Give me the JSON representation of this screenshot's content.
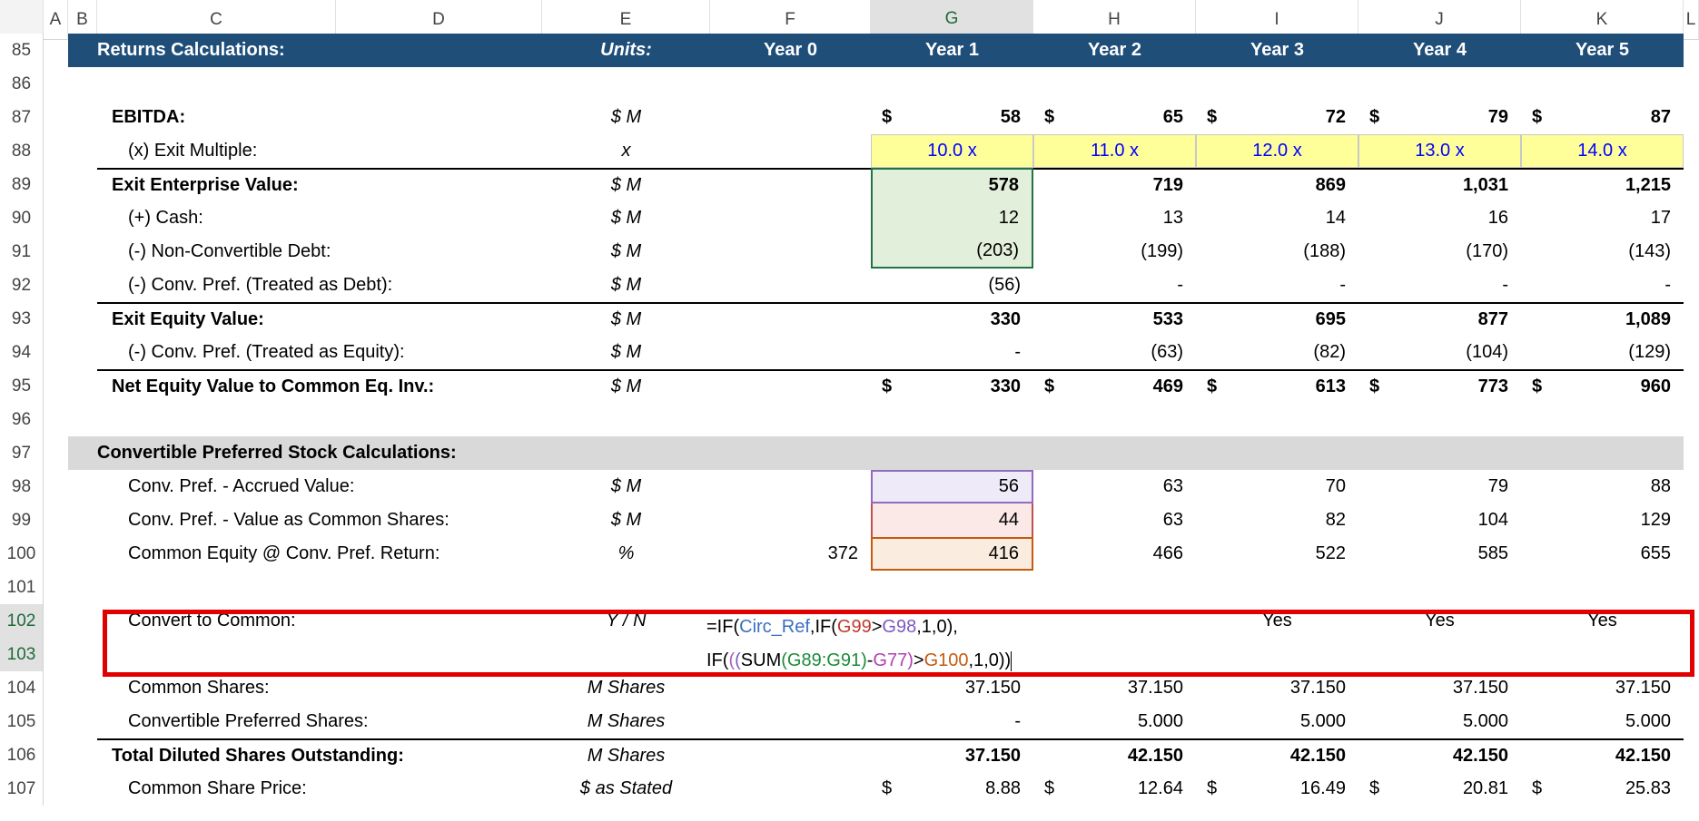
{
  "columns": [
    "A",
    "B",
    "C",
    "D",
    "E",
    "F",
    "G",
    "H",
    "I",
    "J",
    "K",
    "L"
  ],
  "selected_column": "G",
  "header_row": {
    "row": 85,
    "label": "Returns Calculations:",
    "units": "Units:",
    "years": [
      "Year 0",
      "Year 1",
      "Year 2",
      "Year 3",
      "Year 4",
      "Year 5"
    ]
  },
  "rows": [
    {
      "row": 86
    },
    {
      "row": 87,
      "label": "EBITDA:",
      "bold": true,
      "unit": "$ M",
      "dollar": true,
      "values": [
        "",
        "58",
        "65",
        "72",
        "79",
        "87"
      ]
    },
    {
      "row": 88,
      "label": "(x) Exit Multiple:",
      "unit": "x",
      "style": "multiple",
      "values": [
        "",
        "10.0 x",
        "11.0 x",
        "12.0 x",
        "13.0 x",
        "14.0 x"
      ]
    },
    {
      "row": 89,
      "label": "Exit Enterprise Value:",
      "bold": true,
      "unit": "$ M",
      "topline": true,
      "values": [
        "",
        "578",
        "719",
        "869",
        "1,031",
        "1,215"
      ]
    },
    {
      "row": 90,
      "label": "(+) Cash:",
      "unit": "$ M",
      "values": [
        "",
        "12",
        "13",
        "14",
        "16",
        "17"
      ]
    },
    {
      "row": 91,
      "label": "(-) Non-Convertible Debt:",
      "unit": "$ M",
      "values": [
        "",
        "(203)",
        "(199)",
        "(188)",
        "(170)",
        "(143)"
      ]
    },
    {
      "row": 92,
      "label": "(-) Conv. Pref. (Treated as Debt):",
      "unit": "$ M",
      "values": [
        "",
        "(56)",
        "-",
        "-",
        "-",
        "-"
      ]
    },
    {
      "row": 93,
      "label": "Exit Equity Value:",
      "bold": true,
      "unit": "$ M",
      "topline": true,
      "values": [
        "",
        "330",
        "533",
        "695",
        "877",
        "1,089"
      ]
    },
    {
      "row": 94,
      "label": "(-) Conv. Pref. (Treated as Equity):",
      "unit": "$ M",
      "values": [
        "",
        "-",
        "(63)",
        "(82)",
        "(104)",
        "(129)"
      ]
    },
    {
      "row": 95,
      "label": "Net Equity Value to Common Eq. Inv.:",
      "bold": true,
      "unit": "$ M",
      "topline": true,
      "dollar": true,
      "values": [
        "",
        "330",
        "469",
        "613",
        "773",
        "960"
      ]
    },
    {
      "row": 96
    },
    {
      "row": 97,
      "label": "Convertible Preferred Stock Calculations:",
      "style": "section"
    },
    {
      "row": 98,
      "label": "Conv. Pref. - Accrued Value:",
      "unit": "$ M",
      "gstyle": "purple",
      "values": [
        "",
        "56",
        "63",
        "70",
        "79",
        "88"
      ]
    },
    {
      "row": 99,
      "label": "Conv. Pref. - Value as Common Shares:",
      "unit": "$ M",
      "gstyle": "red",
      "values": [
        "",
        "44",
        "63",
        "82",
        "104",
        "129"
      ]
    },
    {
      "row": 100,
      "label": "Common Equity @ Conv. Pref. Return:",
      "unit": "%",
      "gstyle": "orange",
      "values": [
        "372",
        "416",
        "466",
        "522",
        "585",
        "655"
      ]
    },
    {
      "row": 101
    },
    {
      "row": 102,
      "label": "Convert to Common:",
      "unit": "Y / N",
      "style": "yn",
      "values": [
        "",
        "",
        "",
        "Yes",
        "Yes",
        "Yes"
      ]
    },
    {
      "row": 103
    },
    {
      "row": 104,
      "label": "Common Shares:",
      "unit": "M Shares",
      "values": [
        "",
        "37.150",
        "37.150",
        "37.150",
        "37.150",
        "37.150"
      ]
    },
    {
      "row": 105,
      "label": "Convertible Preferred Shares:",
      "unit": "M Shares",
      "values": [
        "",
        "-",
        "5.000",
        "5.000",
        "5.000",
        "5.000"
      ]
    },
    {
      "row": 106,
      "label": "Total Diluted Shares Outstanding:",
      "bold": true,
      "unit": "M Shares",
      "topline": true,
      "values": [
        "",
        "37.150",
        "42.150",
        "42.150",
        "42.150",
        "42.150"
      ]
    },
    {
      "row": 107,
      "label": "Common Share Price:",
      "unit": "$ as Stated",
      "dollar": true,
      "values": [
        "",
        "8.88",
        "12.64",
        "16.49",
        "20.81",
        "25.83"
      ]
    }
  ],
  "formula": {
    "line1": [
      {
        "t": "=IF(",
        "c": "#000000"
      },
      {
        "t": "Circ_Ref",
        "c": "#3a6fc4"
      },
      {
        "t": ",IF(",
        "c": "#000000"
      },
      {
        "t": "G99",
        "c": "#c0392b"
      },
      {
        "t": ">",
        "c": "#000000"
      },
      {
        "t": "G98",
        "c": "#7e57c2"
      },
      {
        "t": ",1,0),",
        "c": "#000000"
      }
    ],
    "line2": [
      {
        "t": "IF(",
        "c": "#000000"
      },
      {
        "t": "(",
        "c": "#b05cc0"
      },
      {
        "t": "(",
        "c": "#7e57c2"
      },
      {
        "t": "SUM",
        "c": "#000000"
      },
      {
        "t": "(",
        "c": "#1e8a3a"
      },
      {
        "t": "G89:G91",
        "c": "#1e8a3a"
      },
      {
        "t": ")",
        "c": "#1e8a3a"
      },
      {
        "t": "-",
        "c": "#000000"
      },
      {
        "t": "G77",
        "c": "#b040b0"
      },
      {
        "t": ")",
        "c": "#b040b0"
      },
      {
        "t": ">",
        "c": "#000000"
      },
      {
        "t": "G100",
        "c": "#c55a11"
      },
      {
        "t": ",1,0))",
        "c": "#000000"
      }
    ]
  },
  "colors": {
    "header_navy": "#1f4e79",
    "input_yellow": "#ffff99",
    "highlight_red": "#e00000"
  }
}
